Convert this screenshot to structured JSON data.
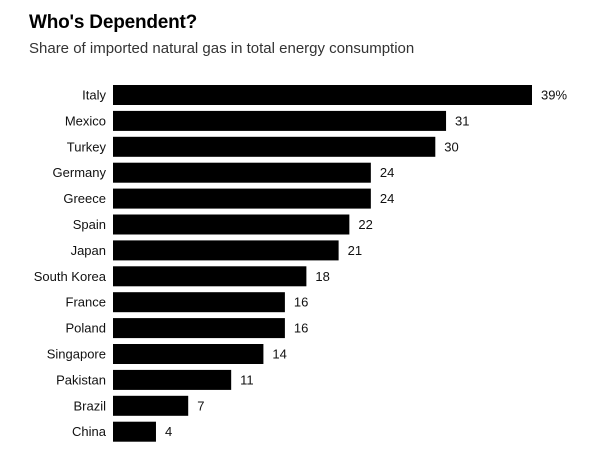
{
  "chart_data": {
    "type": "bar",
    "orientation": "horizontal",
    "title": "Who's Dependent?",
    "subtitle": "Share of imported natural gas in total energy consumption",
    "categories": [
      "Italy",
      "Mexico",
      "Turkey",
      "Germany",
      "Greece",
      "Spain",
      "Japan",
      "South Korea",
      "France",
      "Poland",
      "Singapore",
      "Pakistan",
      "Brazil",
      "China"
    ],
    "values": [
      39,
      31,
      30,
      24,
      24,
      22,
      21,
      18,
      16,
      16,
      14,
      11,
      7,
      4
    ],
    "value_labels": [
      "39%",
      "31",
      "30",
      "24",
      "24",
      "22",
      "21",
      "18",
      "16",
      "16",
      "14",
      "11",
      "7",
      "4"
    ],
    "unit": "%",
    "bar_color": "#000000",
    "xlim": [
      0,
      39
    ],
    "grid": false,
    "legend": "none"
  }
}
